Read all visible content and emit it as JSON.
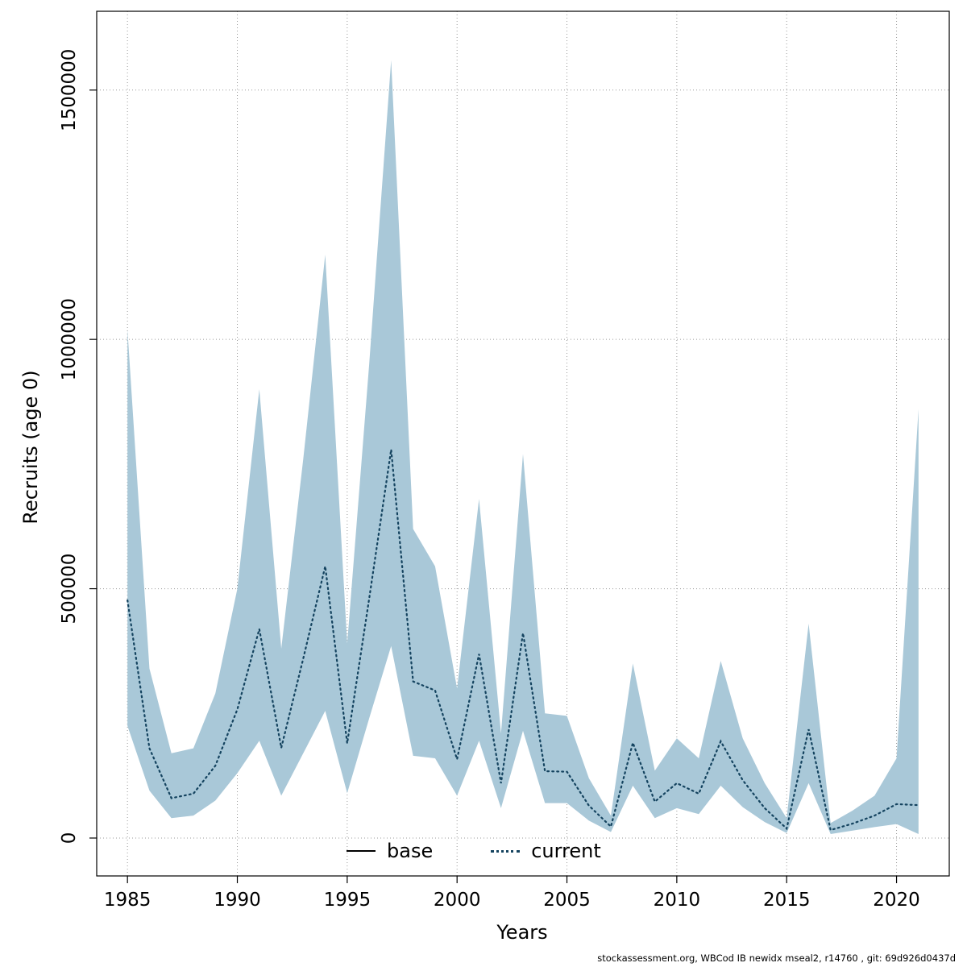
{
  "footer": {
    "text": "stockassessment.org, WBCod IB newidx mseal2, r14760 , git: 69d926d0437d"
  },
  "chart_data": {
    "type": "line",
    "title": "",
    "xlabel": "Years",
    "ylabel": "Recruits (age 0)",
    "grid": true,
    "xlim": [
      1983.6,
      2022.4
    ],
    "ylim": [
      -76000,
      1658000
    ],
    "xticks": [
      1985,
      1990,
      1995,
      2000,
      2005,
      2010,
      2015,
      2020
    ],
    "yticks": [
      0,
      500000,
      1000000,
      1500000
    ],
    "x": [
      1985,
      1986,
      1987,
      1988,
      1989,
      1990,
      1991,
      1992,
      1993,
      1994,
      1995,
      1996,
      1997,
      1998,
      1999,
      2000,
      2001,
      2002,
      2003,
      2004,
      2005,
      2006,
      2007,
      2008,
      2009,
      2010,
      2011,
      2012,
      2013,
      2014,
      2015,
      2016,
      2017,
      2018,
      2019,
      2020,
      2021
    ],
    "series": [
      {
        "name": "current",
        "style": "dotted",
        "color": "#14435f",
        "values": [
          477000,
          180000,
          80000,
          89000,
          145000,
          258000,
          419000,
          181000,
          360000,
          545000,
          190000,
          480000,
          779000,
          314000,
          296000,
          158000,
          369000,
          110000,
          411000,
          134000,
          133000,
          65000,
          23000,
          191000,
          73000,
          110000,
          89000,
          194000,
          116000,
          60000,
          19000,
          218000,
          16000,
          29000,
          45000,
          68000,
          66000
        ]
      }
    ],
    "band": {
      "name": "current-confidence-interval",
      "color": "#a9c8d8",
      "lower": [
        225000,
        95000,
        40000,
        45000,
        75000,
        130000,
        195000,
        85000,
        170000,
        255000,
        90000,
        240000,
        385000,
        165000,
        160000,
        85000,
        195000,
        60000,
        215000,
        70000,
        70000,
        35000,
        12000,
        105000,
        40000,
        60000,
        48000,
        105000,
        62000,
        32000,
        10000,
        110000,
        8000,
        15000,
        22000,
        28000,
        8000
      ],
      "upper": [
        1020000,
        340000,
        170000,
        180000,
        290000,
        500000,
        900000,
        380000,
        760000,
        1170000,
        390000,
        950000,
        1560000,
        620000,
        545000,
        300000,
        680000,
        210000,
        770000,
        250000,
        245000,
        120000,
        45000,
        350000,
        135000,
        200000,
        160000,
        355000,
        200000,
        110000,
        40000,
        430000,
        30000,
        55000,
        85000,
        160000,
        860000
      ]
    },
    "legend": {
      "position": "bottom-center",
      "entries": [
        {
          "label": "base",
          "style": "solid",
          "color": "#000000"
        },
        {
          "label": "current",
          "style": "dotted",
          "color": "#14435f"
        }
      ]
    }
  }
}
